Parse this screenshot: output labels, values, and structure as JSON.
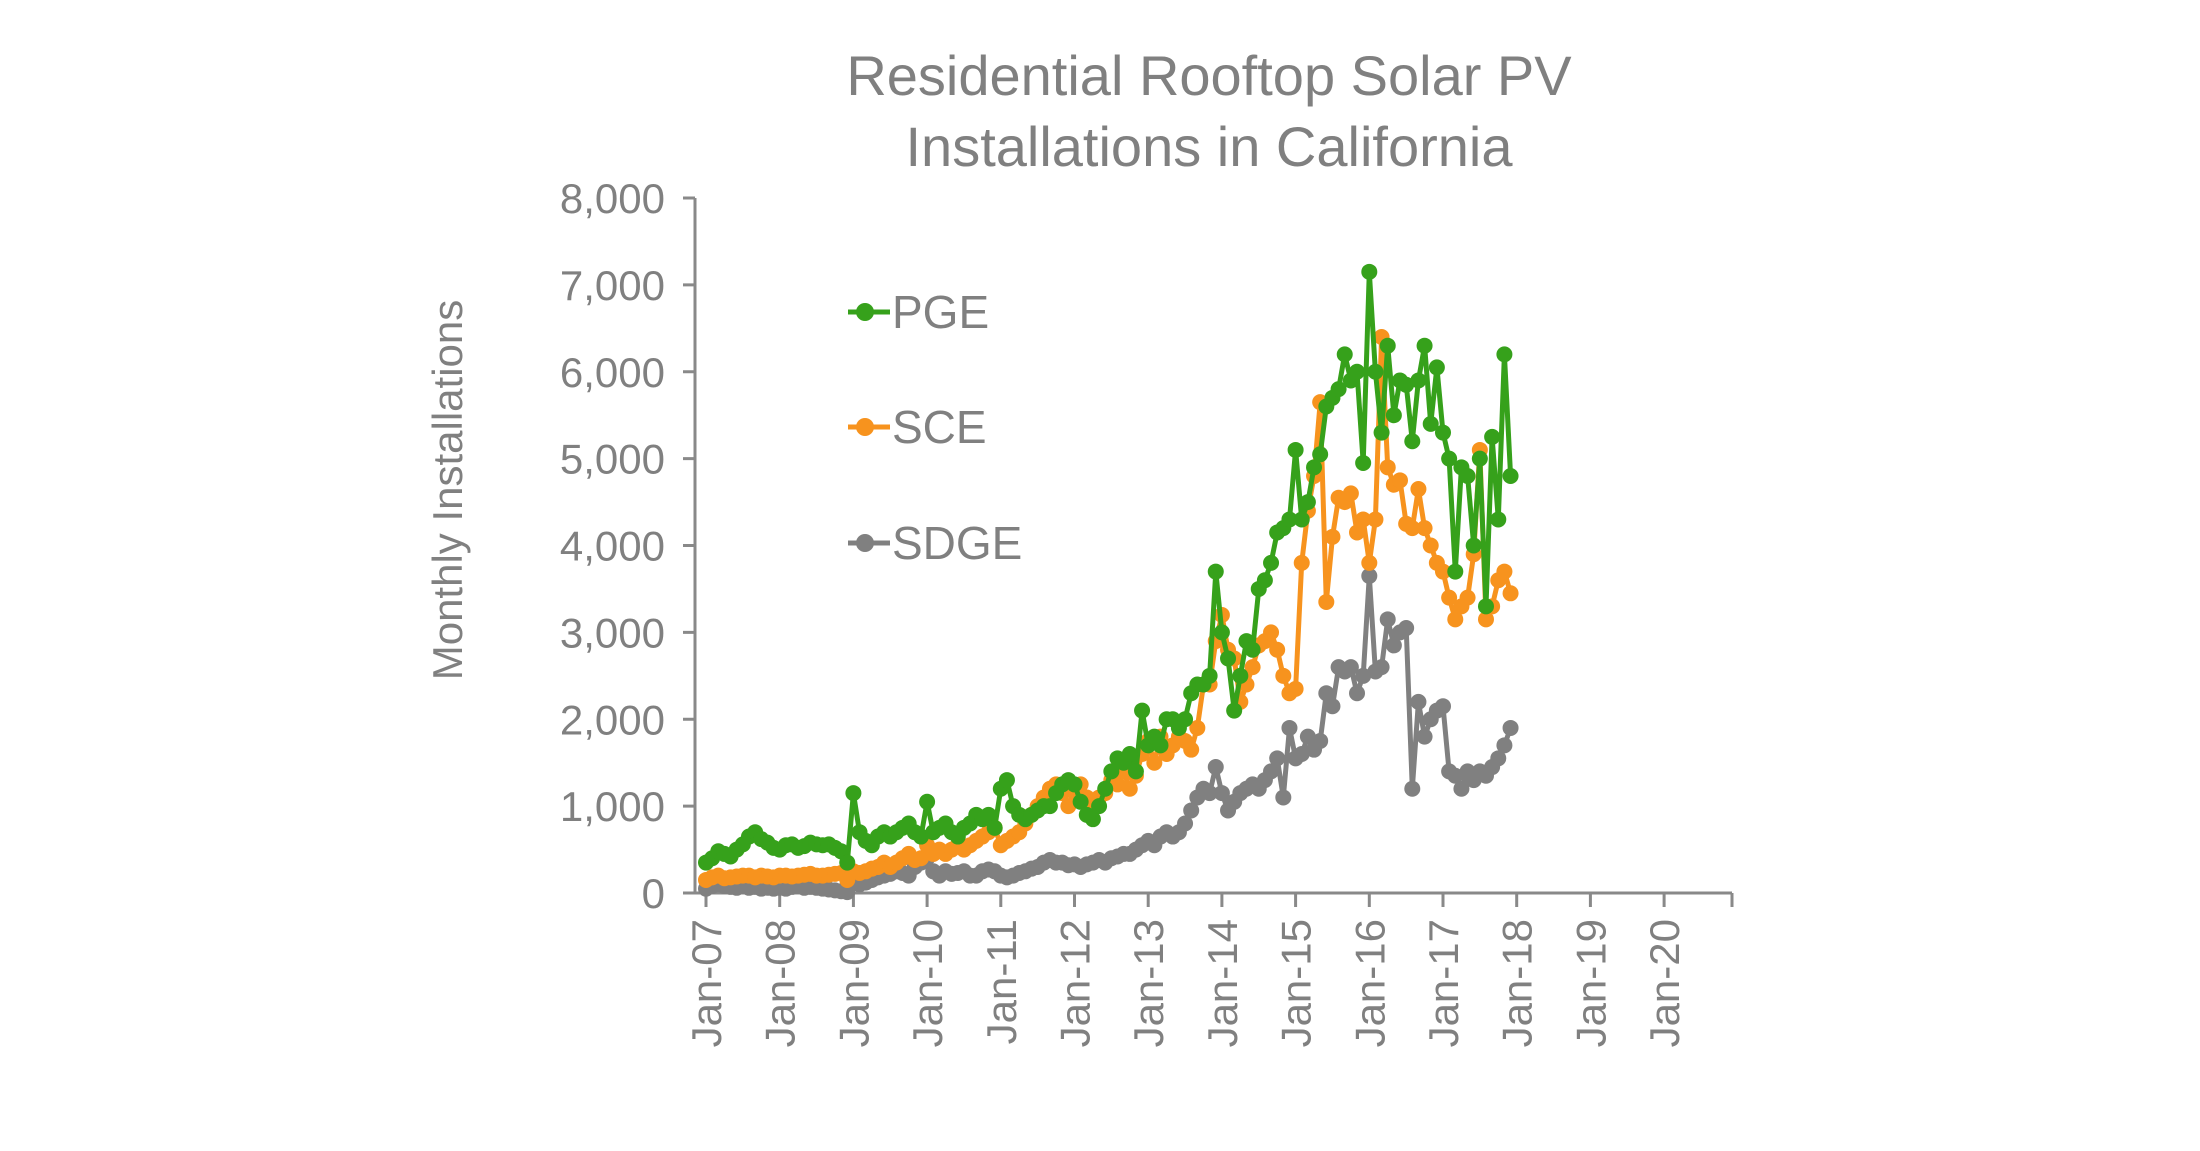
{
  "chart_data": {
    "type": "line",
    "title": [
      "Residential Rooftop Solar PV",
      "Installations in California"
    ],
    "xlabel": "",
    "ylabel": "Monthly Installations",
    "ylim": [
      0,
      8000
    ],
    "yticks": [
      0,
      1000,
      2000,
      3000,
      4000,
      5000,
      6000,
      7000,
      8000
    ],
    "ytick_labels": [
      "0",
      "1,000",
      "2,000",
      "3,000",
      "4,000",
      "5,000",
      "6,000",
      "7,000",
      "8,000"
    ],
    "xtick_labels": [
      "Jan-07",
      "Jan-08",
      "Jan-09",
      "Jan-10",
      "Jan-11",
      "Jan-12",
      "Jan-13",
      "Jan-14",
      "Jan-15",
      "Jan-16",
      "Jan-17",
      "Jan-18",
      "Jan-19",
      "Jan-20"
    ],
    "x_start": "Jan-07",
    "x_frequency": "monthly",
    "grid": false,
    "legend_position": "top-left",
    "series": [
      {
        "name": "PGE",
        "color": "#36a11b",
        "values": [
          350,
          400,
          480,
          450,
          420,
          500,
          560,
          650,
          700,
          620,
          580,
          520,
          500,
          550,
          560,
          520,
          540,
          580,
          560,
          550,
          560,
          520,
          480,
          350,
          1150,
          700,
          600,
          550,
          650,
          700,
          650,
          700,
          750,
          800,
          700,
          650,
          1050,
          700,
          750,
          800,
          700,
          650,
          750,
          800,
          900,
          850,
          900,
          750,
          1200,
          1300,
          1000,
          900,
          850,
          900,
          950,
          1000,
          1000,
          1150,
          1250,
          1300,
          1250,
          1050,
          900,
          850,
          1000,
          1200,
          1400,
          1550,
          1500,
          1600,
          1400,
          2100,
          1700,
          1800,
          1700,
          2000,
          2000,
          1900,
          2000,
          2300,
          2400,
          2400,
          2500,
          3700,
          3000,
          2700,
          2100,
          2500,
          2900,
          2800,
          3500,
          3600,
          3800,
          4150,
          4200,
          4300,
          5100,
          4300,
          4500,
          4900,
          5050,
          5600,
          5700,
          5800,
          6200,
          5900,
          6000,
          4950,
          7150,
          6000,
          5300,
          6300,
          5500,
          5900,
          5850,
          5200,
          5900,
          6300,
          5400,
          6050,
          5300,
          5000,
          3700,
          4900,
          4800,
          4000,
          5000,
          3300,
          5250,
          4300,
          6200,
          4800
        ]
      },
      {
        "name": "SCE",
        "color": "#f7931e",
        "values": [
          150,
          180,
          200,
          170,
          180,
          190,
          200,
          200,
          180,
          200,
          190,
          180,
          200,
          200,
          190,
          200,
          210,
          220,
          200,
          200,
          210,
          220,
          230,
          150,
          250,
          230,
          250,
          280,
          300,
          350,
          300,
          350,
          400,
          450,
          380,
          400,
          550,
          450,
          500,
          450,
          500,
          550,
          500,
          550,
          600,
          650,
          700,
          750,
          550,
          600,
          650,
          700,
          800,
          900,
          1000,
          1100,
          1200,
          1250,
          1150,
          1000,
          1200,
          1250,
          1100,
          1050,
          1100,
          1150,
          1300,
          1250,
          1400,
          1200,
          1350,
          1600,
          1750,
          1500,
          1800,
          1600,
          1700,
          1800,
          1750,
          1650,
          1900,
          2400,
          2400,
          2900,
          3200,
          2800,
          2700,
          2200,
          2400,
          2600,
          2850,
          2900,
          3000,
          2800,
          2500,
          2300,
          2350,
          3800,
          4400,
          4800,
          5650,
          3350,
          4100,
          4550,
          4500,
          4600,
          4150,
          4300,
          3800,
          4300,
          6400,
          4900,
          4700,
          4750,
          4250,
          4200,
          4650,
          4200,
          4000,
          3800,
          3700,
          3400,
          3150,
          3300,
          3400,
          3900,
          5100,
          3150,
          3300,
          3600,
          3700,
          3450
        ]
      },
      {
        "name": "SDGE",
        "color": "#808080",
        "values": [
          50,
          80,
          100,
          80,
          70,
          60,
          80,
          60,
          70,
          50,
          60,
          50,
          60,
          50,
          70,
          80,
          60,
          70,
          60,
          50,
          40,
          30,
          20,
          10,
          150,
          100,
          120,
          150,
          180,
          200,
          220,
          250,
          230,
          200,
          300,
          350,
          400,
          250,
          200,
          250,
          220,
          230,
          250,
          200,
          200,
          250,
          270,
          250,
          200,
          180,
          200,
          230,
          250,
          280,
          300,
          350,
          380,
          350,
          350,
          320,
          330,
          300,
          330,
          350,
          380,
          350,
          400,
          420,
          450,
          450,
          500,
          550,
          600,
          550,
          650,
          700,
          650,
          700,
          800,
          950,
          1100,
          1200,
          1150,
          1450,
          1150,
          950,
          1050,
          1150,
          1200,
          1250,
          1200,
          1300,
          1400,
          1550,
          1100,
          1900,
          1550,
          1600,
          1800,
          1650,
          1750,
          2300,
          2150,
          2600,
          2550,
          2600,
          2300,
          2500,
          3650,
          2550,
          2600,
          3150,
          2850,
          3000,
          3050,
          1200,
          2200,
          1800,
          2000,
          2100,
          2150,
          1400,
          1350,
          1200,
          1400,
          1300,
          1400,
          1350,
          1450,
          1550,
          1700,
          1900
        ]
      }
    ]
  }
}
